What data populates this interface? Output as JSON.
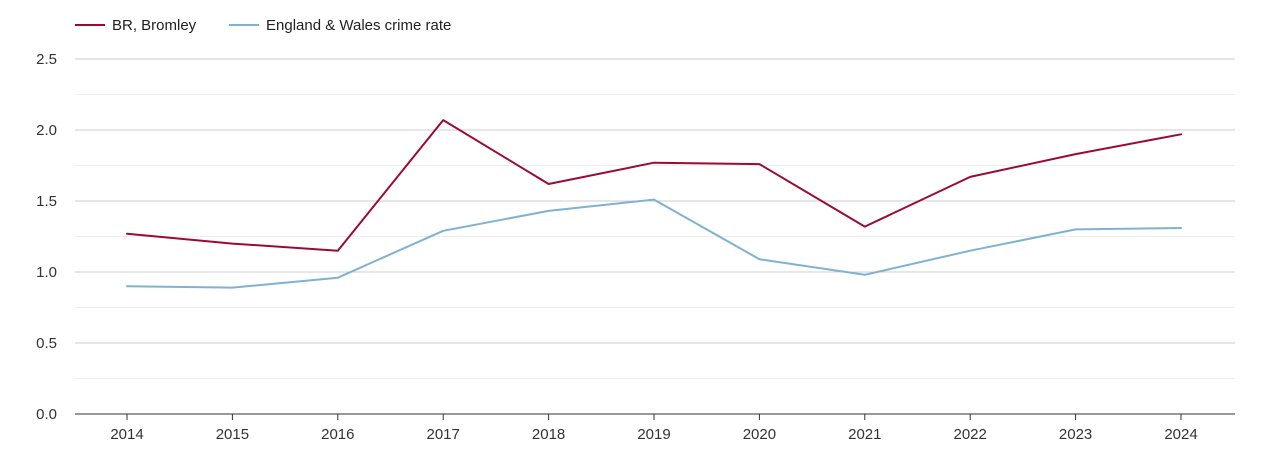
{
  "chart_data": {
    "type": "line",
    "title": "",
    "xlabel": "",
    "ylabel": "",
    "legend_position": "top-left",
    "grid": true,
    "categories": [
      "2014",
      "2015",
      "2016",
      "2017",
      "2018",
      "2019",
      "2020",
      "2021",
      "2022",
      "2023",
      "2024"
    ],
    "ylim": [
      0,
      2.5
    ],
    "yticks": [
      "0.0",
      "0.5",
      "1.0",
      "1.5",
      "2.0",
      "2.5"
    ],
    "series": [
      {
        "name": "BR, Bromley",
        "color": "#9a0a35",
        "values": [
          1.27,
          1.2,
          1.15,
          2.07,
          1.62,
          1.77,
          1.76,
          1.32,
          1.67,
          1.83,
          1.97
        ]
      },
      {
        "name": "England & Wales crime rate",
        "color": "#7fb2d0",
        "values": [
          0.9,
          0.89,
          0.96,
          1.29,
          1.43,
          1.51,
          1.09,
          0.98,
          1.15,
          1.3,
          1.31
        ]
      }
    ]
  }
}
